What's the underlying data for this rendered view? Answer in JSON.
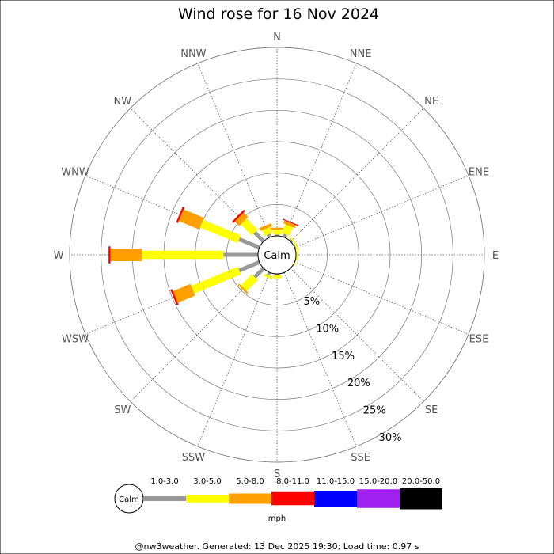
{
  "chart_data": {
    "type": "wind-rose",
    "title": "Wind rose for 16 Nov 2024",
    "directions": [
      "N",
      "NNE",
      "NE",
      "ENE",
      "E",
      "ESE",
      "SE",
      "SSE",
      "S",
      "SSW",
      "SW",
      "WSW",
      "W",
      "WNW",
      "NW",
      "NNW"
    ],
    "ring_labels": [
      "5%",
      "10%",
      "15%",
      "20%",
      "25%",
      "30%"
    ],
    "ring_values": [
      5,
      10,
      15,
      20,
      25,
      30
    ],
    "max_percent": 30,
    "calm_label": "Calm",
    "bins": [
      {
        "label": "1.0-3.0",
        "color": "#999999"
      },
      {
        "label": "3.0-5.0",
        "color": "#ffff00"
      },
      {
        "label": "5.0-8.0",
        "color": "#ffa000"
      },
      {
        "label": "8.0-11.0",
        "color": "#ff0000"
      },
      {
        "label": "11.0-15.0",
        "color": "#0000ff"
      },
      {
        "label": "15.0-20.0",
        "color": "#a020f0"
      },
      {
        "label": "20.0-50.0",
        "color": "#000000"
      }
    ],
    "unit": "mph",
    "series": [
      {
        "direction": "N",
        "values": [
          0.2,
          0.8,
          0.3,
          0,
          0,
          0,
          0
        ]
      },
      {
        "direction": "NNE",
        "values": [
          0.5,
          1.5,
          0.5,
          0.15,
          0,
          0,
          0
        ]
      },
      {
        "direction": "NE",
        "values": [
          0.3,
          0.2,
          0,
          0,
          0,
          0,
          0
        ]
      },
      {
        "direction": "ENE",
        "values": [
          0.2,
          0.3,
          0,
          0,
          0,
          0,
          0
        ]
      },
      {
        "direction": "E",
        "values": [
          0,
          0.3,
          0,
          0,
          0,
          0,
          0
        ]
      },
      {
        "direction": "ESE",
        "values": [
          0,
          0.2,
          0,
          0,
          0,
          0,
          0
        ]
      },
      {
        "direction": "SE",
        "values": [
          0,
          0,
          0,
          0,
          0,
          0,
          0
        ]
      },
      {
        "direction": "SSE",
        "values": [
          0,
          0,
          0,
          0,
          0,
          0,
          0
        ]
      },
      {
        "direction": "S",
        "values": [
          0.2,
          0.5,
          0,
          0,
          0,
          0,
          0
        ]
      },
      {
        "direction": "SSW",
        "values": [
          0.5,
          0.4,
          0,
          0,
          0,
          0,
          0
        ]
      },
      {
        "direction": "SW",
        "values": [
          2.0,
          2.5,
          0.3,
          0,
          0,
          0,
          0
        ]
      },
      {
        "direction": "WSW",
        "values": [
          3.5,
          8.0,
          3.0,
          0.3,
          0,
          0,
          0
        ]
      },
      {
        "direction": "W",
        "values": [
          5.5,
          13.0,
          5.0,
          0.3,
          0,
          0,
          0
        ]
      },
      {
        "direction": "WNW",
        "values": [
          3.5,
          6.5,
          3.5,
          0.3,
          0,
          0,
          0
        ]
      },
      {
        "direction": "NW",
        "values": [
          2.0,
          2.5,
          1.0,
          0.3,
          0,
          0,
          0
        ]
      },
      {
        "direction": "NNW",
        "values": [
          0.5,
          1.0,
          0.5,
          0,
          0,
          0,
          0
        ]
      }
    ]
  },
  "footer": "@nw3weather. Generated: 13 Dec 2025 19:30; Load time: 0.97 s"
}
